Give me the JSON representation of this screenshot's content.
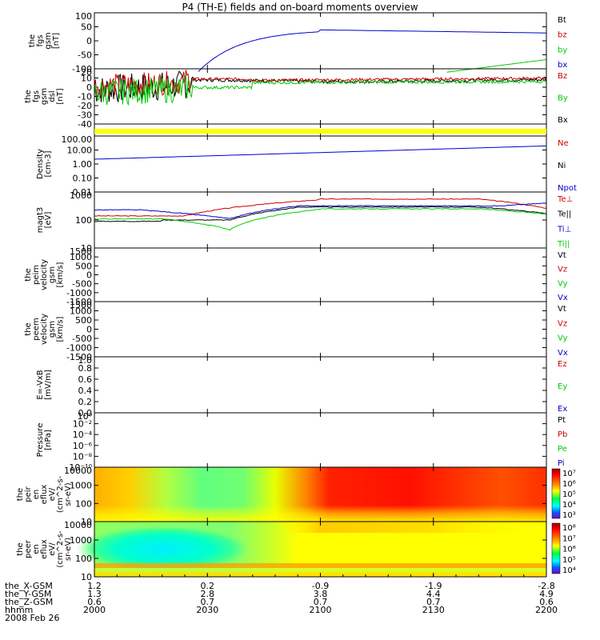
{
  "title": "P4 (TH-E) fields and on-board moments overview",
  "date": "2008 Feb 26",
  "colors": {
    "black": "#000000",
    "red": "#cc0000",
    "green": "#00cc00",
    "blue": "#0000cc",
    "yellow": "#ffff00"
  },
  "chart_data": {
    "type": "line",
    "x_ticks": [
      "2000",
      "2030",
      "2100",
      "2130",
      "2200"
    ],
    "ephemeris": [
      {
        "label": "the_X-GSM",
        "values": [
          "1.2",
          "0.2",
          "-0.9",
          "-1.9",
          "-2.8"
        ]
      },
      {
        "label": "the_Y-GSM",
        "values": [
          "1.3",
          "2.8",
          "3.8",
          "4.4",
          "4.9"
        ]
      },
      {
        "label": "the_Z-GSM",
        "values": [
          "0.6",
          "0.7",
          "0.7",
          "0.7",
          "0.6"
        ]
      },
      {
        "label": "hhmm",
        "values": [
          "2000",
          "2030",
          "2100",
          "2130",
          "2200"
        ]
      }
    ],
    "panels": [
      {
        "id": "fgs_gsm",
        "ylabel": [
          "the",
          "fgs",
          "gsm",
          "[nT]"
        ],
        "yticks": [
          "100",
          "50",
          "0",
          "-50",
          "-100"
        ],
        "legend": [
          {
            "text": "Bt",
            "color": "black"
          },
          {
            "text": "bz",
            "color": "red"
          },
          {
            "text": "by",
            "color": "green"
          },
          {
            "text": "bx",
            "color": "blue"
          }
        ]
      },
      {
        "id": "fgs_dsl",
        "ylabel": [
          "the",
          "fgs",
          "gsm",
          "dsl",
          "[nT]"
        ],
        "yticks": [
          "20",
          "10",
          "0",
          "-10",
          "-20",
          "-30",
          "-40"
        ],
        "legend": [
          {
            "text": "Bz",
            "color": "red"
          },
          {
            "text": "By",
            "color": "green"
          },
          {
            "text": "Bx",
            "color": "black"
          }
        ]
      },
      {
        "id": "density",
        "ylabel": [
          "Density",
          "[cm-3]"
        ],
        "yticks": [
          "100.00",
          "10.00",
          "1.00",
          "0.10",
          "0.01"
        ],
        "legend": [
          {
            "text": "Ne",
            "color": "red"
          },
          {
            "text": "Ni",
            "color": "black"
          },
          {
            "text": "Npot",
            "color": "blue"
          }
        ]
      },
      {
        "id": "temperature",
        "ylabel": [
          "magt3",
          "[eV]"
        ],
        "yticks": [
          "1000",
          "100",
          "10"
        ],
        "legend": [
          {
            "text": "Te⊥",
            "color": "red"
          },
          {
            "text": "Te||",
            "color": "black"
          },
          {
            "text": "Ti⊥",
            "color": "blue"
          },
          {
            "text": "Ti||",
            "color": "green"
          }
        ]
      },
      {
        "id": "peim_velocity",
        "ylabel": [
          "the",
          "peim",
          "velocity",
          "gsm",
          "[km/s]"
        ],
        "yticks": [
          "1500",
          "1000",
          "500",
          "0",
          "-500",
          "-1000",
          "-1500"
        ],
        "legend": [
          {
            "text": "Vt",
            "color": "black"
          },
          {
            "text": "Vz",
            "color": "red"
          },
          {
            "text": "Vy",
            "color": "green"
          },
          {
            "text": "Vx",
            "color": "blue"
          }
        ]
      },
      {
        "id": "peem_velocity",
        "ylabel": [
          "the",
          "peem",
          "velocity",
          "gsm",
          "[km/s]"
        ],
        "yticks": [
          "1500",
          "1000",
          "500",
          "0",
          "-500",
          "-1000",
          "-1500"
        ],
        "legend": [
          {
            "text": "Vt",
            "color": "black"
          },
          {
            "text": "Vz",
            "color": "red"
          },
          {
            "text": "Vy",
            "color": "green"
          },
          {
            "text": "Vx",
            "color": "blue"
          }
        ]
      },
      {
        "id": "efield",
        "ylabel": [
          "E=-VxB",
          "[mV/m]"
        ],
        "yticks": [
          "1.0",
          "0.8",
          "0.6",
          "0.4",
          "0.2",
          "0.0"
        ],
        "legend": [
          {
            "text": "Ez",
            "color": "red"
          },
          {
            "text": "Ey",
            "color": "green"
          },
          {
            "text": "Ex",
            "color": "blue"
          }
        ]
      },
      {
        "id": "pressure",
        "ylabel": [
          "Pressure",
          "[nPa]"
        ],
        "yticks": [
          "10⁰",
          "10⁻²",
          "10⁻⁴",
          "10⁻⁶",
          "10⁻⁸",
          "10⁻¹⁰"
        ],
        "legend": [
          {
            "text": "Pt",
            "color": "black"
          },
          {
            "text": "Pb",
            "color": "red"
          },
          {
            "text": "Pe",
            "color": "green"
          },
          {
            "text": "Pi",
            "color": "blue"
          }
        ]
      },
      {
        "id": "peir_spectrogram",
        "ylabel": [
          "the",
          "peir",
          "en",
          "eflux",
          "eV/",
          "(cm^2-s-",
          "sr-eV)"
        ],
        "yticks": [
          "10000",
          "1000",
          "100",
          "10"
        ],
        "colorbar": [
          "10⁷",
          "10⁶",
          "10⁵",
          "10⁴",
          "10³"
        ]
      },
      {
        "id": "peer_spectrogram",
        "ylabel": [
          "the",
          "peer",
          "en",
          "eflux",
          "eV/",
          "(cm^2-s-",
          "sr-eV)"
        ],
        "yticks": [
          "10000",
          "1000",
          "100",
          "10"
        ],
        "colorbar": [
          "10⁸",
          "10⁷",
          "10⁶",
          "10⁵",
          "10⁴"
        ]
      }
    ]
  }
}
